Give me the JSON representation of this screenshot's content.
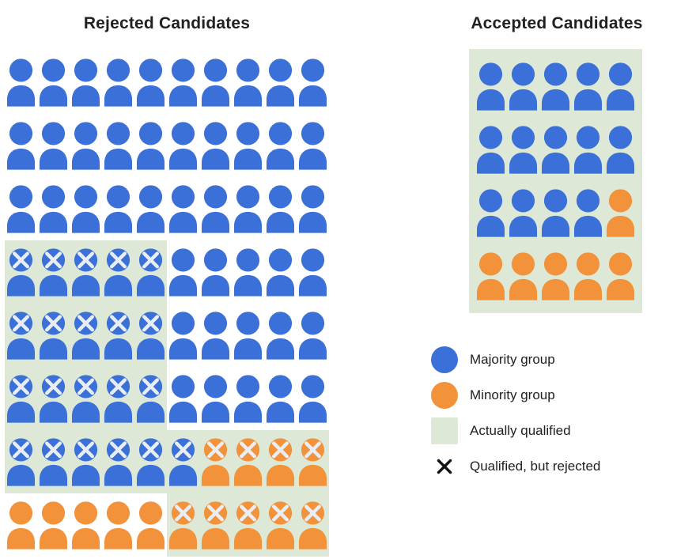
{
  "colors": {
    "majority": "#3b70d9",
    "minority": "#f2923b",
    "qualified_bg": "#dde9d6",
    "x_mark": "#e9eef6",
    "x_legend": "#111111"
  },
  "cell_codes": {
    "b": "majority group (blue person)",
    "o": "minority group (orange person)",
    "x": "marked qualified-but-rejected (white X on head)",
    "q": "on actually-qualified (green) background"
  },
  "rejected": {
    "title": "Rejected Candidates",
    "rows": [
      [
        "b",
        "b",
        "b",
        "b",
        "b",
        "b",
        "b",
        "b",
        "b",
        "b"
      ],
      [
        "b",
        "b",
        "b",
        "b",
        "b",
        "b",
        "b",
        "b",
        "b",
        "b"
      ],
      [
        "b",
        "b",
        "b",
        "b",
        "b",
        "b",
        "b",
        "b",
        "b",
        "b"
      ],
      [
        "bxq",
        "bxq",
        "bxq",
        "bxq",
        "bxq",
        "b",
        "b",
        "b",
        "b",
        "b"
      ],
      [
        "bxq",
        "bxq",
        "bxq",
        "bxq",
        "bxq",
        "b",
        "b",
        "b",
        "b",
        "b"
      ],
      [
        "bxq",
        "bxq",
        "bxq",
        "bxq",
        "bxq",
        "b",
        "b",
        "b",
        "b",
        "b"
      ],
      [
        "bxq",
        "bxq",
        "bxq",
        "bxq",
        "bxq",
        "bxq",
        "oxq",
        "oxq",
        "oxq",
        "oxq"
      ],
      [
        "o",
        "o",
        "o",
        "o",
        "o",
        "oxq",
        "oxq",
        "oxq",
        "oxq",
        "oxq"
      ]
    ]
  },
  "accepted": {
    "title": "Accepted Candidates",
    "rows": [
      [
        "bq",
        "bq",
        "bq",
        "bq",
        "bq"
      ],
      [
        "bq",
        "bq",
        "bq",
        "bq",
        "bq"
      ],
      [
        "bq",
        "bq",
        "bq",
        "bq",
        "oq"
      ],
      [
        "oq",
        "oq",
        "oq",
        "oq",
        "oq"
      ]
    ]
  },
  "legend": {
    "items": [
      {
        "swatch": "majority-circle",
        "label": "Majority group"
      },
      {
        "swatch": "minority-circle",
        "label": "Minority group"
      },
      {
        "swatch": "qualified-square",
        "label": "Actually qualified"
      },
      {
        "swatch": "x-mark",
        "label": "Qualified, but rejected"
      }
    ]
  }
}
